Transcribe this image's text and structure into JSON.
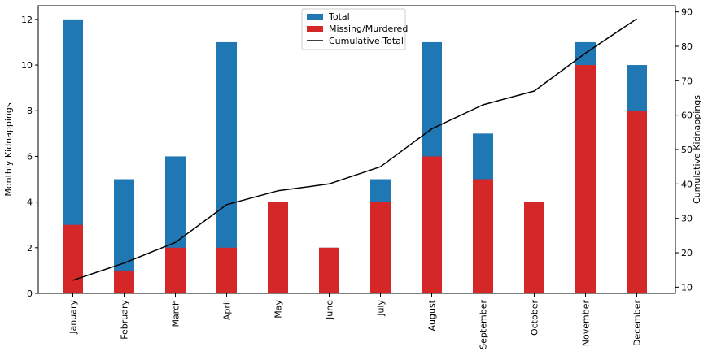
{
  "chart_data": {
    "type": "bar",
    "categories": [
      "January",
      "February",
      "March",
      "April",
      "May",
      "June",
      "July",
      "August",
      "September",
      "October",
      "November",
      "December"
    ],
    "series": [
      {
        "name": "Total",
        "values": [
          12,
          5,
          6,
          11,
          4,
          2,
          5,
          11,
          7,
          4,
          11,
          10
        ],
        "color": "#1f77b4",
        "axis": "left"
      },
      {
        "name": "Missing/Murdered",
        "values": [
          3,
          1,
          2,
          2,
          4,
          2,
          4,
          6,
          5,
          4,
          10,
          8
        ],
        "color": "#d62728",
        "axis": "left"
      },
      {
        "name": "Cumulative Total",
        "type": "line",
        "values": [
          12,
          17,
          23,
          34,
          38,
          40,
          45,
          56,
          63,
          67,
          78,
          88
        ],
        "color": "#000000",
        "axis": "right"
      }
    ],
    "ylabel": "Monthly Kidnappings",
    "ylabel_right": "Cumulative Kidnappings",
    "ylim": [
      0,
      12.6
    ],
    "ylim_right": [
      8.2,
      91.8
    ],
    "yticks": [
      0,
      2,
      4,
      6,
      8,
      10,
      12
    ],
    "yticks_right": [
      10,
      20,
      30,
      40,
      50,
      60,
      70,
      80,
      90
    ],
    "legend_position": "top-center",
    "grid": false
  }
}
